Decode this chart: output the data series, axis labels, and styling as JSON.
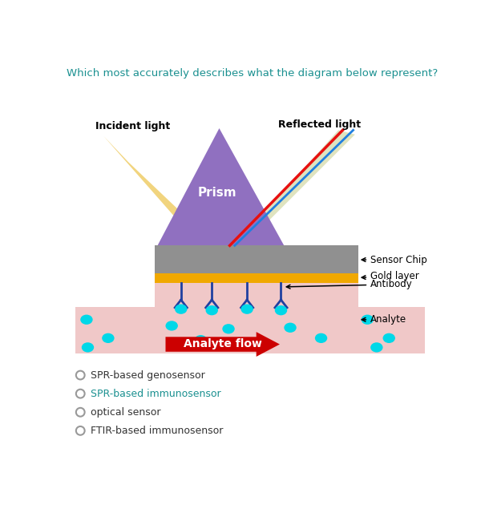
{
  "question": "Which most accurately describes what the diagram below represent?",
  "question_color": "#1a9090",
  "options": [
    "SPR-based genosensor",
    "SPR-based immunosensor",
    "optical sensor",
    "FTIR-based immunosensor"
  ],
  "option_colors": [
    "#333333",
    "#1a9090",
    "#333333",
    "#333333"
  ],
  "colors": {
    "prism": "#9070c0",
    "incident_beam": "#f0d070",
    "reflected_beam_bg": "#d8ddb0",
    "reflected_red": "#e81010",
    "reflected_blue": "#2080e0",
    "sensor_chip": "#909090",
    "gold_layer": "#f0a800",
    "flow_channel": "#f0c8c8",
    "antibody": "#2040a0",
    "analyte": "#00d8e8",
    "arrow_red": "#cc0000",
    "background": "#ffffff"
  },
  "labels": {
    "incident_light": "Incident light",
    "reflected_light": "Reflected light",
    "prism": "Prism",
    "sensor_chip": "Sensor Chip",
    "gold_layer": "Gold layer",
    "antibody": "Antibody",
    "analyte": "Analyte",
    "analyte_flow": "Analyte flow"
  }
}
